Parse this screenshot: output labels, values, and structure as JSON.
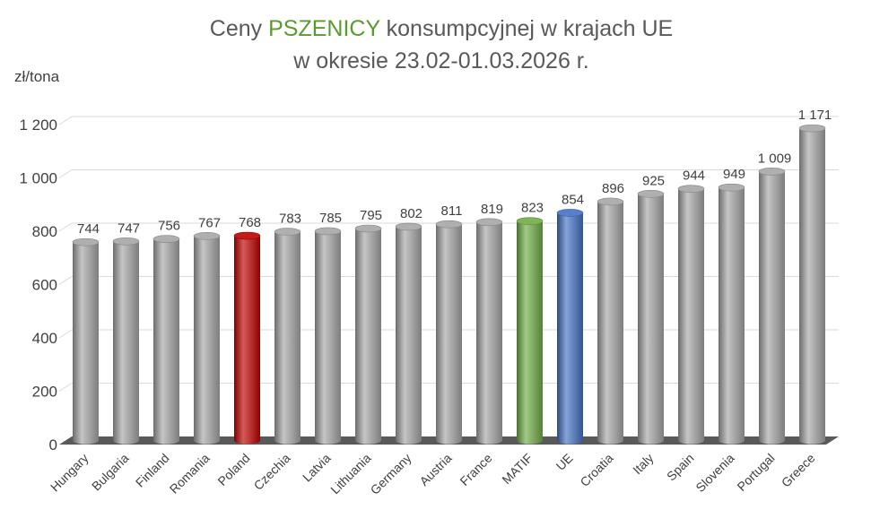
{
  "chart_data": {
    "type": "bar",
    "title_parts": [
      "Ceny ",
      "PSZENICY",
      " konsumpcyjnej  w krajach UE"
    ],
    "subtitle": "w okresie 23.02-01.03.2026 r.",
    "ylabel": "zł/tona",
    "xlabel": "",
    "ylim": [
      0,
      1200
    ],
    "yticks": [
      0,
      200,
      400,
      600,
      800,
      1000,
      1200
    ],
    "ytick_labels": [
      "0",
      "200",
      "400",
      "600",
      "800",
      "1 000",
      "1 200"
    ],
    "grid": true,
    "legend": "none",
    "categories": [
      "Hungary",
      "Bulgaria",
      "Finland",
      "Romania",
      "Poland",
      "Czechia",
      "Latvia",
      "Lithuania",
      "Germany",
      "Austria",
      "France",
      "MATIF",
      "UE",
      "Croatia",
      "Italy",
      "Spain",
      "Slovenia",
      "Portugal",
      "Greece"
    ],
    "values": [
      744,
      747,
      756,
      767,
      768,
      783,
      785,
      795,
      802,
      811,
      819,
      823,
      854,
      896,
      925,
      944,
      949,
      1009,
      1171
    ],
    "value_labels": [
      "744",
      "747",
      "756",
      "767",
      "768",
      "783",
      "785",
      "795",
      "802",
      "811",
      "819",
      "823",
      "854",
      "896",
      "925",
      "944",
      "949",
      "1 009",
      "1 171"
    ],
    "colors": {
      "default": "#a6a6a6",
      "highlight": {
        "Poland": "#c00000",
        "MATIF": "#70ad47",
        "UE": "#4472c4"
      },
      "title_accent": "#5a9a2f",
      "floor": "#595959"
    }
  }
}
